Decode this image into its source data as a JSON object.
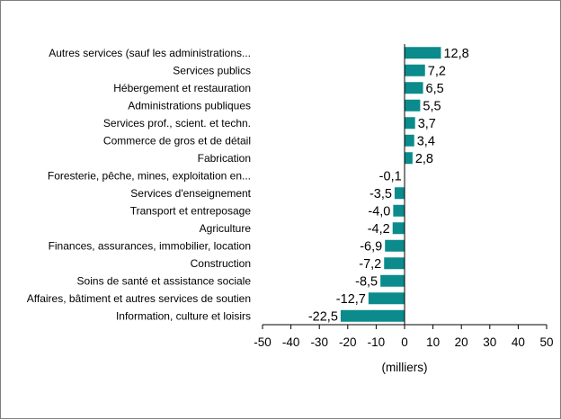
{
  "chart_data": {
    "type": "bar",
    "orientation": "horizontal",
    "categories": [
      "Autres services (sauf les administrations...",
      "Services publics",
      "Hébergement et restauration",
      "Administrations publiques",
      "Services prof., scient. et techn.",
      "Commerce de gros et de détail",
      "Fabrication",
      "Foresterie, pêche, mines, exploitation en...",
      "Services d'enseignement",
      "Transport et entreposage",
      "Agriculture",
      "Finances, assurances, immobilier, location",
      "Construction",
      "Soins de santé et assistance sociale",
      "Affaires, bâtiment et autres services de soutien",
      "Information, culture et loisirs"
    ],
    "values": [
      12.8,
      7.2,
      6.5,
      5.5,
      3.7,
      3.4,
      2.8,
      -0.1,
      -3.5,
      -4.0,
      -4.2,
      -6.9,
      -7.2,
      -8.5,
      -12.7,
      -22.5
    ],
    "value_labels": [
      "12,8",
      "7,2",
      "6,5",
      "5,5",
      "3,7",
      "3,4",
      "2,8",
      "-0,1",
      "-3,5",
      "-4,0",
      "-4,2",
      "-6,9",
      "-7,2",
      "-8,5",
      "-12,7",
      "-22,5"
    ],
    "xlim": [
      -50,
      50
    ],
    "x_ticks": [
      "-50",
      "-40",
      "-30",
      "-20",
      "-10",
      "0",
      "10",
      "20",
      "30",
      "40",
      "50"
    ],
    "xlabel": "(milliers)",
    "ylabel": "",
    "title": "",
    "grid": false,
    "legend": "none",
    "bar_color": "#0b8b8b"
  }
}
